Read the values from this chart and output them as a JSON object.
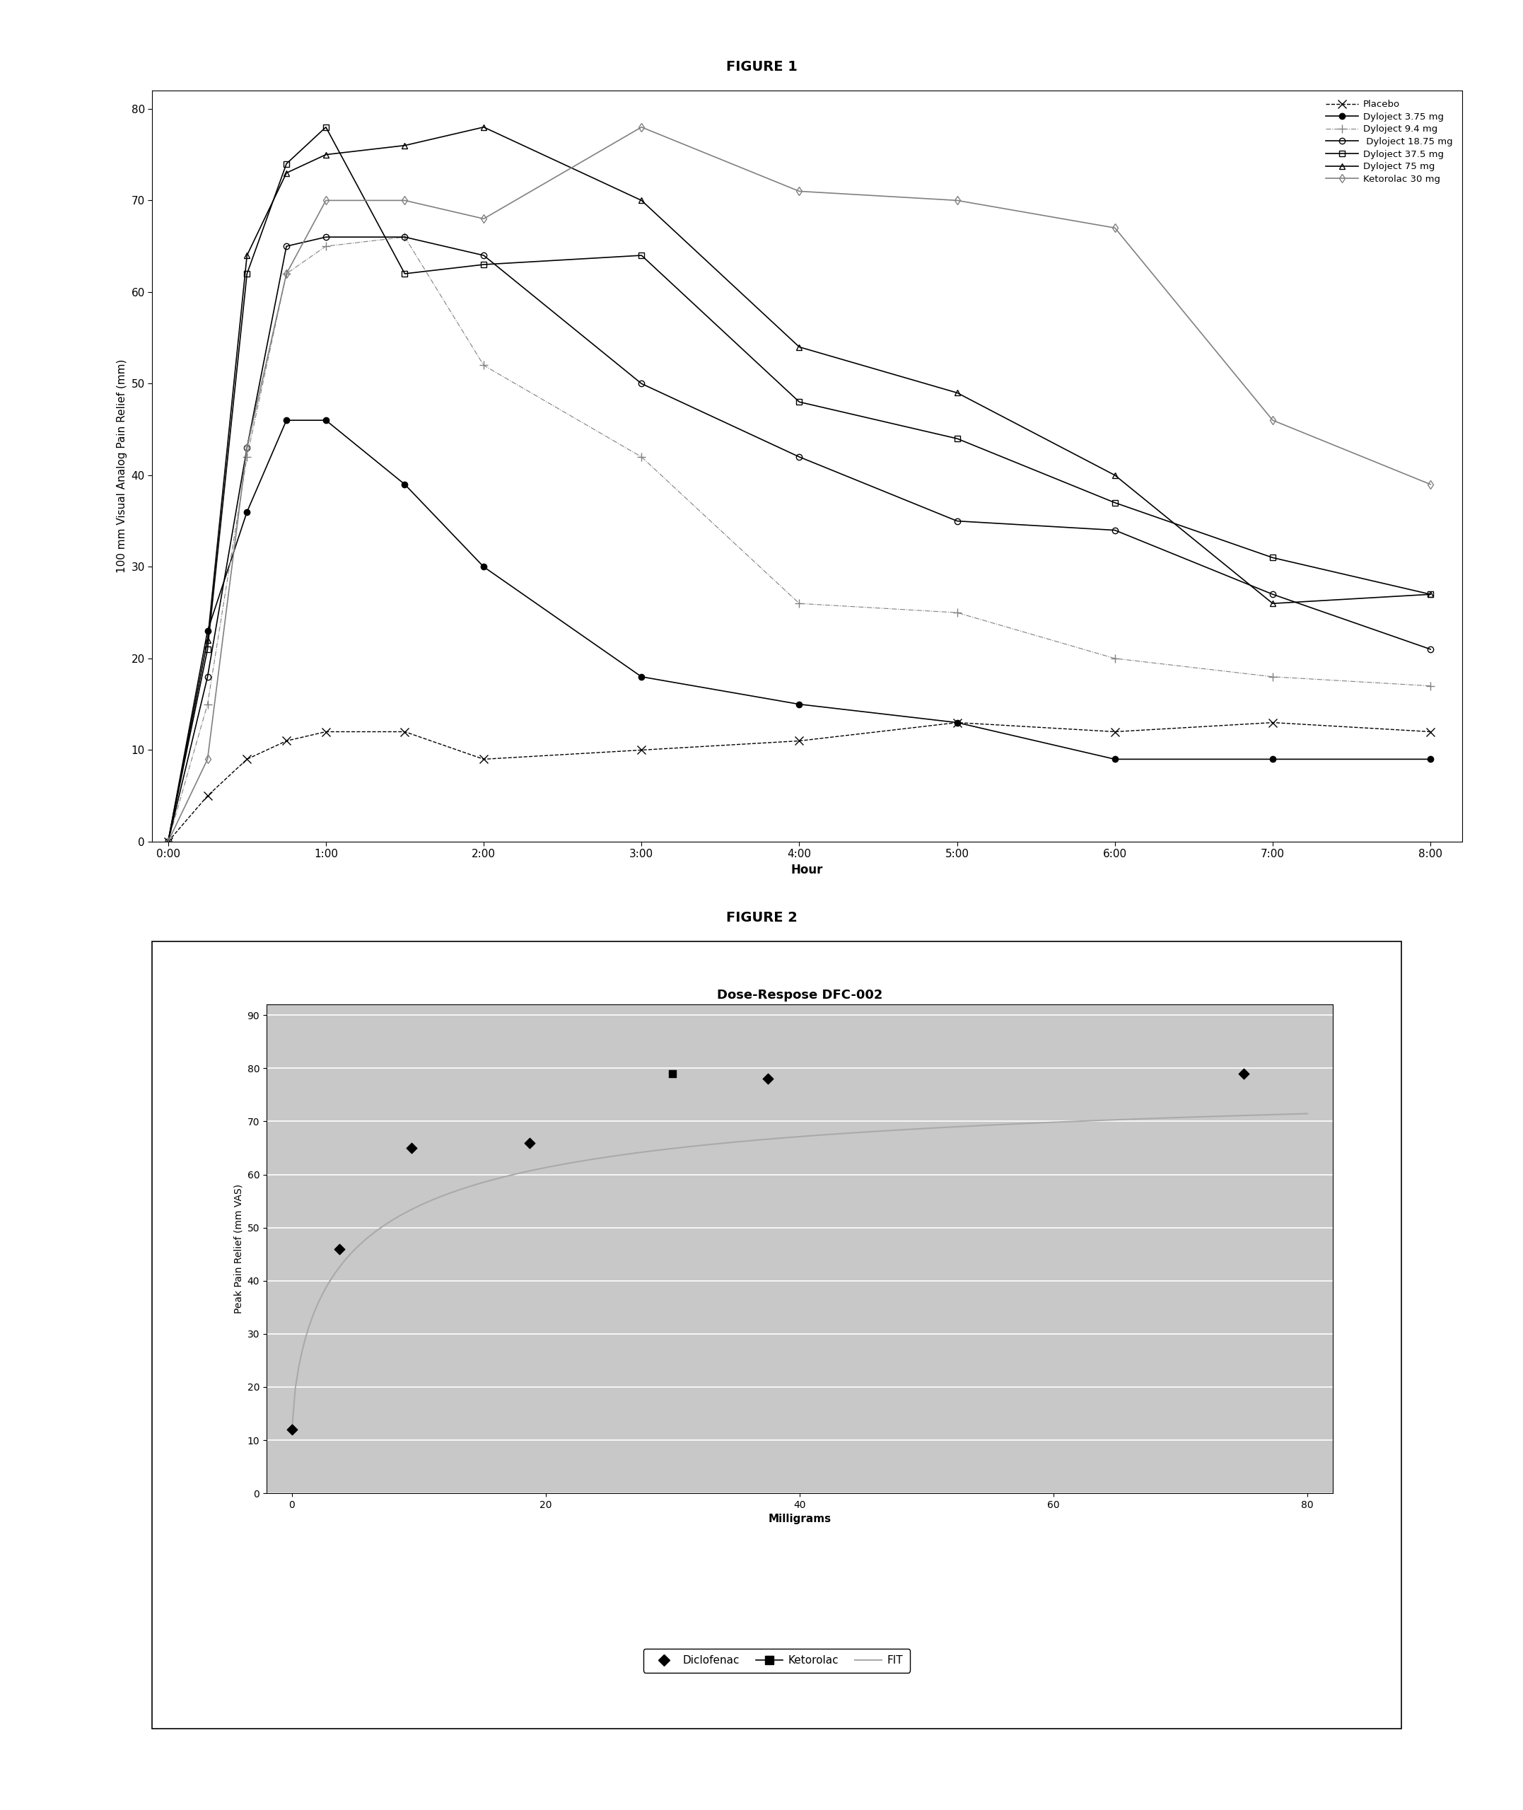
{
  "fig1_title": "FIGURE 1",
  "fig2_title": "FIGURE 2",
  "fig1_xlabel": "Hour",
  "fig1_ylabel": "100 mm Visual Analog Pain Relief (mm)",
  "fig2_xlabel": "Milligrams",
  "fig2_ylabel": "Peak Pain Relief (mm VAS)",
  "fig2_chart_title": "Dose-Respose DFC-002",
  "time_points": [
    0,
    0.25,
    0.5,
    0.75,
    1.0,
    1.5,
    2.0,
    3.0,
    4.0,
    5.0,
    6.0,
    7.0,
    8.0
  ],
  "placebo": [
    0,
    5,
    9,
    11,
    12,
    12,
    9,
    10,
    11,
    13,
    12,
    13,
    12
  ],
  "dyloject_3p75": [
    0,
    23,
    36,
    46,
    46,
    39,
    30,
    18,
    15,
    13,
    9,
    9,
    9
  ],
  "dyloject_9p4": [
    0,
    15,
    42,
    62,
    65,
    66,
    52,
    42,
    26,
    25,
    20,
    18,
    17
  ],
  "dyloject_18p75": [
    0,
    18,
    43,
    65,
    66,
    66,
    64,
    50,
    42,
    35,
    34,
    27,
    21
  ],
  "dyloject_37p5": [
    0,
    21,
    62,
    74,
    78,
    62,
    63,
    64,
    48,
    44,
    37,
    31,
    27
  ],
  "dyloject_75": [
    0,
    22,
    64,
    73,
    75,
    76,
    78,
    70,
    54,
    49,
    40,
    26,
    27
  ],
  "ketorolac_30": [
    0,
    9,
    43,
    62,
    70,
    70,
    68,
    78,
    71,
    70,
    67,
    46,
    39
  ],
  "diclofenac_x": [
    0,
    3.75,
    9.4,
    18.75,
    37.5,
    75
  ],
  "diclofenac_y": [
    12,
    46,
    65,
    66,
    78,
    79
  ],
  "ketorolac_x": [
    30
  ],
  "ketorolac_y": [
    79
  ],
  "fig1_xlim": [
    -0.1,
    8.2
  ],
  "fig1_ylim": [
    0,
    82
  ],
  "fig2_xlim": [
    -2,
    82
  ],
  "fig2_ylim": [
    0,
    92
  ]
}
